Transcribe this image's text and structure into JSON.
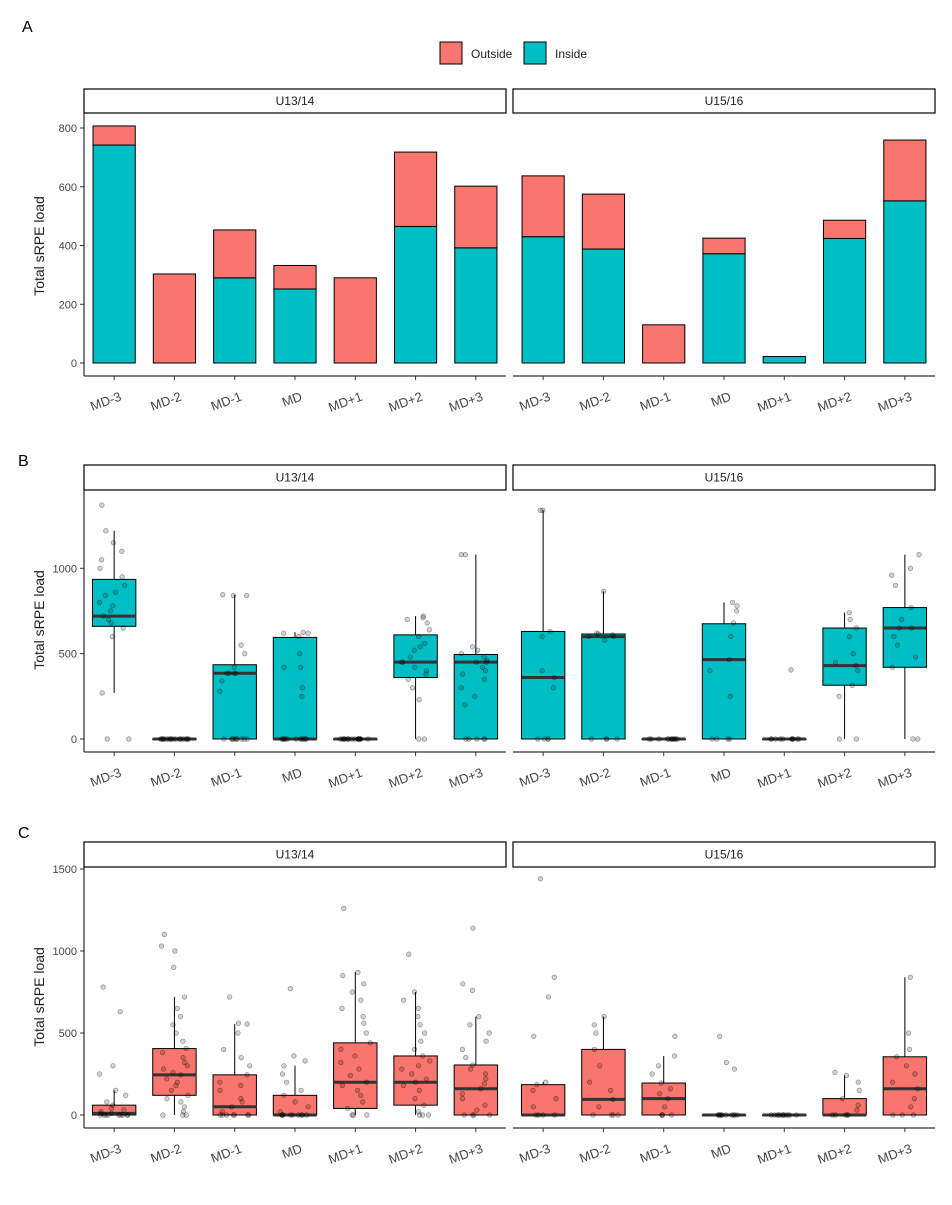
{
  "colors": {
    "outside": "#F8766D",
    "inside": "#00BFC4",
    "point": "#000000"
  },
  "legend": {
    "items": [
      {
        "label": "Outside",
        "color": "#F8766D"
      },
      {
        "label": "Inside",
        "color": "#00BFC4"
      }
    ]
  },
  "chart_data": [
    {
      "panel_label": "A",
      "type": "bar",
      "stacked": true,
      "ylabel": "Total sRPE load",
      "ylim": [
        0,
        800
      ],
      "yticks": [
        0,
        200,
        400,
        600,
        800
      ],
      "categories": [
        "MD-3",
        "MD-2",
        "MD-1",
        "MD",
        "MD+1",
        "MD+2",
        "MD+3"
      ],
      "facets": [
        {
          "label": "U13/14",
          "series": [
            {
              "name": "Inside",
              "values": [
                742,
                0,
                290,
                252,
                0,
                465,
                392
              ]
            },
            {
              "name": "Outside",
              "values": [
                65,
                303,
                163,
                80,
                290,
                253,
                210
              ]
            }
          ]
        },
        {
          "label": "U15/16",
          "series": [
            {
              "name": "Inside",
              "values": [
                430,
                388,
                0,
                372,
                22,
                424,
                552
              ]
            },
            {
              "name": "Outside",
              "values": [
                207,
                187,
                130,
                53,
                0,
                62,
                207
              ]
            }
          ]
        }
      ]
    },
    {
      "panel_label": "B",
      "type": "box",
      "fill": "#00BFC4",
      "ylabel": "Total sRPE load",
      "ylim": [
        0,
        1400
      ],
      "yticks": [
        0,
        500,
        1000
      ],
      "categories": [
        "MD-3",
        "MD-2",
        "MD-1",
        "MD",
        "MD+1",
        "MD+2",
        "MD+3"
      ],
      "facets": [
        {
          "label": "U13/14",
          "boxes": [
            {
              "min": 270,
              "q1": 660,
              "median": 720,
              "q3": 935,
              "max": 1220
            },
            {
              "min": 0,
              "q1": 0,
              "median": 0,
              "q3": 0,
              "max": 0
            },
            {
              "min": 0,
              "q1": 0,
              "median": 385,
              "q3": 435,
              "max": 845
            },
            {
              "min": 0,
              "q1": 0,
              "median": 0,
              "q3": 595,
              "max": 625
            },
            {
              "min": 0,
              "q1": 0,
              "median": 0,
              "q3": 0,
              "max": 0
            },
            {
              "min": 0,
              "q1": 360,
              "median": 450,
              "q3": 610,
              "max": 720
            },
            {
              "min": 0,
              "q1": 0,
              "median": 450,
              "q3": 495,
              "max": 1080
            }
          ],
          "points": [
            [
              0,
              0,
              270,
              600,
              650,
              680,
              700,
              720,
              750,
              780,
              800,
              840,
              860,
              900,
              950,
              1000,
              1050,
              1100,
              1150,
              1220,
              1370
            ],
            [
              0,
              0,
              0,
              0,
              0,
              0,
              0,
              0,
              0,
              0,
              0,
              0,
              0,
              0,
              0,
              0,
              0,
              0,
              0,
              0
            ],
            [
              0,
              0,
              0,
              0,
              0,
              0,
              0,
              0,
              0,
              0,
              280,
              340,
              385,
              385,
              385,
              385,
              420,
              500,
              550,
              840,
              840,
              845
            ],
            [
              0,
              0,
              0,
              0,
              0,
              0,
              0,
              0,
              0,
              0,
              0,
              0,
              0,
              250,
              300,
              420,
              420,
              500,
              600,
              620,
              620,
              625
            ],
            [
              0,
              0,
              0,
              0,
              0,
              0,
              0,
              0,
              0,
              0,
              0,
              0,
              0,
              0,
              0,
              0,
              0,
              0,
              0,
              0
            ],
            [
              0,
              0,
              230,
              300,
              350,
              380,
              400,
              420,
              450,
              450,
              480,
              520,
              540,
              560,
              600,
              640,
              680,
              700,
              710,
              720
            ],
            [
              0,
              0,
              0,
              0,
              0,
              200,
              250,
              300,
              350,
              380,
              400,
              420,
              450,
              450,
              460,
              480,
              500,
              520,
              540,
              1080,
              1080
            ]
          ]
        },
        {
          "label": "U15/16",
          "boxes": [
            {
              "min": 0,
              "q1": 0,
              "median": 360,
              "q3": 630,
              "max": 1340
            },
            {
              "min": 0,
              "q1": 0,
              "median": 600,
              "q3": 615,
              "max": 865
            },
            {
              "min": 0,
              "q1": 0,
              "median": 0,
              "q3": 0,
              "max": 0
            },
            {
              "min": 0,
              "q1": 0,
              "median": 465,
              "q3": 675,
              "max": 800
            },
            {
              "min": 0,
              "q1": 0,
              "median": 0,
              "q3": 0,
              "max": 0
            },
            {
              "min": 0,
              "q1": 315,
              "median": 430,
              "q3": 650,
              "max": 740
            },
            {
              "min": 0,
              "q1": 420,
              "median": 650,
              "q3": 770,
              "max": 1080
            }
          ],
          "points": [
            [
              0,
              0,
              0,
              0,
              300,
              360,
              400,
              600,
              630,
              1340,
              1340
            ],
            [
              0,
              0,
              0,
              0,
              580,
              600,
              600,
              610,
              615,
              620,
              865
            ],
            [
              0,
              0,
              0,
              0,
              0,
              0,
              0,
              0,
              0,
              0,
              0,
              0
            ],
            [
              0,
              0,
              0,
              0,
              250,
              400,
              465,
              600,
              680,
              750,
              780,
              800
            ],
            [
              0,
              0,
              0,
              0,
              0,
              0,
              0,
              0,
              0,
              0,
              0,
              405
            ],
            [
              0,
              0,
              250,
              315,
              400,
              430,
              450,
              500,
              600,
              650,
              700,
              740
            ],
            [
              0,
              0,
              420,
              480,
              550,
              600,
              650,
              650,
              700,
              770,
              900,
              960,
              1000,
              1080
            ]
          ]
        }
      ]
    },
    {
      "panel_label": "C",
      "type": "box",
      "fill": "#F8766D",
      "ylabel": "Total sRPE load",
      "ylim": [
        0,
        1500
      ],
      "yticks": [
        0,
        500,
        1000,
        1500
      ],
      "categories": [
        "MD-3",
        "MD-2",
        "MD-1",
        "MD",
        "MD+1",
        "MD+2",
        "MD+3"
      ],
      "facets": [
        {
          "label": "U13/14",
          "boxes": [
            {
              "min": 0,
              "q1": 0,
              "median": 10,
              "q3": 60,
              "max": 150
            },
            {
              "min": 0,
              "q1": 120,
              "median": 245,
              "q3": 405,
              "max": 720
            },
            {
              "min": 0,
              "q1": 0,
              "median": 50,
              "q3": 245,
              "max": 555
            },
            {
              "min": 0,
              "q1": 0,
              "median": 0,
              "q3": 120,
              "max": 300
            },
            {
              "min": 0,
              "q1": 40,
              "median": 200,
              "q3": 440,
              "max": 870
            },
            {
              "min": 0,
              "q1": 60,
              "median": 200,
              "q3": 360,
              "max": 750
            },
            {
              "min": 0,
              "q1": 0,
              "median": 160,
              "q3": 305,
              "max": 600
            }
          ],
          "points": [
            [
              0,
              0,
              0,
              0,
              0,
              0,
              0,
              0,
              0,
              10,
              10,
              20,
              30,
              40,
              60,
              80,
              120,
              150,
              250,
              300,
              630,
              780
            ],
            [
              0,
              0,
              0,
              20,
              50,
              80,
              100,
              120,
              150,
              180,
              200,
              220,
              245,
              260,
              280,
              300,
              320,
              350,
              380,
              405,
              450,
              500,
              550,
              600,
              650,
              720,
              900,
              1000,
              1030,
              1100
            ],
            [
              0,
              0,
              0,
              0,
              0,
              0,
              0,
              20,
              50,
              80,
              100,
              150,
              180,
              200,
              245,
              300,
              350,
              400,
              500,
              555,
              560,
              720
            ],
            [
              0,
              0,
              0,
              0,
              0,
              0,
              0,
              0,
              0,
              0,
              20,
              50,
              80,
              120,
              150,
              200,
              250,
              300,
              330,
              360,
              770
            ],
            [
              0,
              0,
              0,
              40,
              80,
              120,
              150,
              180,
              200,
              240,
              280,
              320,
              360,
              400,
              440,
              500,
              560,
              600,
              650,
              700,
              750,
              800,
              850,
              870,
              1260
            ],
            [
              0,
              0,
              0,
              20,
              60,
              100,
              150,
              180,
              200,
              220,
              250,
              280,
              300,
              330,
              360,
              400,
              450,
              500,
              550,
              600,
              650,
              700,
              750,
              980
            ],
            [
              0,
              0,
              0,
              0,
              30,
              60,
              100,
              130,
              160,
              190,
              220,
              250,
              280,
              305,
              350,
              400,
              450,
              500,
              550,
              600,
              760,
              800,
              1140
            ]
          ]
        },
        {
          "label": "U15/16",
          "boxes": [
            {
              "min": 0,
              "q1": 0,
              "median": 0,
              "q3": 185,
              "max": 200
            },
            {
              "min": 0,
              "q1": 0,
              "median": 95,
              "q3": 400,
              "max": 600
            },
            {
              "min": 0,
              "q1": 0,
              "median": 100,
              "q3": 195,
              "max": 360
            },
            {
              "min": 0,
              "q1": 0,
              "median": 0,
              "q3": 0,
              "max": 0
            },
            {
              "min": 0,
              "q1": 0,
              "median": 0,
              "q3": 0,
              "max": 0
            },
            {
              "min": 0,
              "q1": 0,
              "median": 0,
              "q3": 100,
              "max": 240
            },
            {
              "min": 0,
              "q1": 0,
              "median": 160,
              "q3": 355,
              "max": 840
            }
          ],
          "points": [
            [
              0,
              0,
              0,
              0,
              50,
              100,
              150,
              185,
              200,
              480,
              720,
              840,
              1440
            ],
            [
              0,
              0,
              0,
              0,
              50,
              95,
              150,
              200,
              300,
              400,
              500,
              550,
              600
            ],
            [
              0,
              0,
              0,
              0,
              50,
              100,
              130,
              160,
              195,
              250,
              300,
              360,
              480
            ],
            [
              0,
              0,
              0,
              0,
              0,
              0,
              0,
              0,
              0,
              0,
              0,
              280,
              320,
              480
            ],
            [
              0,
              0,
              0,
              0,
              0,
              0,
              0,
              0,
              0,
              0,
              0,
              0
            ],
            [
              0,
              0,
              0,
              0,
              0,
              30,
              60,
              100,
              150,
              200,
              240,
              260
            ],
            [
              0,
              0,
              0,
              50,
              100,
              160,
              200,
              250,
              300,
              355,
              400,
              500,
              840
            ]
          ]
        }
      ]
    }
  ]
}
